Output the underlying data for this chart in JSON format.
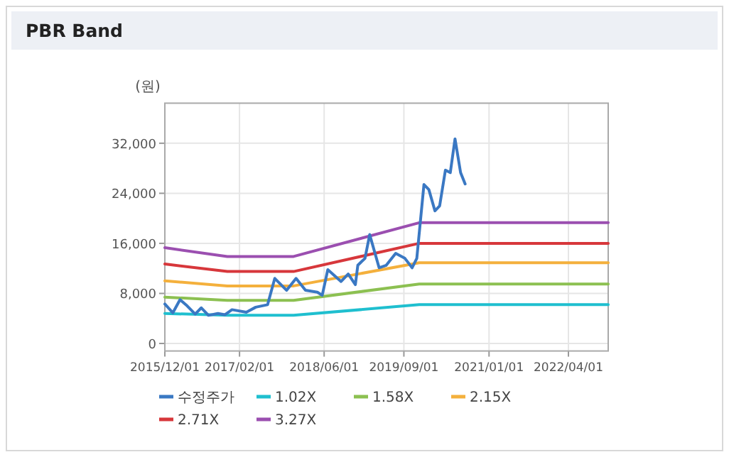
{
  "chart_data": {
    "type": "line",
    "title": "PBR Band",
    "ylabel": "(원)",
    "grid": true,
    "legend": "bottom",
    "xlim": [
      "2015-12-01",
      "2022-11-15"
    ],
    "ylim": [
      -1200,
      38400
    ],
    "xticks": [
      {
        "value": "2015-12-01",
        "label": "2015/12/01"
      },
      {
        "value": "2017-02-01",
        "label": "2017/02/01"
      },
      {
        "value": "2018-06-01",
        "label": "2018/06/01"
      },
      {
        "value": "2019-09-01",
        "label": "2019/09/01"
      },
      {
        "value": "2021-01-01",
        "label": "2021/01/01"
      },
      {
        "value": "2022-04-01",
        "label": "2022/04/01"
      }
    ],
    "yticks": [
      0,
      {
        "value": 8000,
        "label": "8,000"
      },
      {
        "value": 16000,
        "label": "16,000"
      },
      {
        "value": 24000,
        "label": "24,000"
      },
      {
        "value": 32000,
        "label": "32,000"
      }
    ],
    "series": [
      {
        "name": "수정주가",
        "color": "#3a78c3",
        "x": [
          "2015-12-01",
          "2016-01-16",
          "2016-02-26",
          "2016-04-07",
          "2016-05-23",
          "2016-06-27",
          "2016-08-07",
          "2016-09-30",
          "2016-11-10",
          "2016-12-20",
          "2017-03-12",
          "2017-05-05",
          "2017-07-12",
          "2017-08-22",
          "2017-10-29",
          "2017-12-22",
          "2018-02-14",
          "2018-04-23",
          "2018-05-21",
          "2018-06-22",
          "2018-09-06",
          "2018-10-17",
          "2018-11-27",
          "2018-12-11",
          "2019-01-21",
          "2019-02-17",
          "2019-04-12",
          "2019-05-23",
          "2019-07-16",
          "2019-09-07",
          "2019-10-18",
          "2019-11-14",
          "2019-12-25",
          "2020-01-22",
          "2020-02-26",
          "2020-03-24",
          "2020-04-26",
          "2020-05-24",
          "2020-06-20",
          "2020-07-22",
          "2020-08-17"
        ],
        "values": [
          6300,
          4900,
          7000,
          6000,
          4700,
          5700,
          4500,
          4800,
          4600,
          5400,
          5000,
          5800,
          6200,
          10400,
          8500,
          10400,
          8500,
          8200,
          7700,
          11800,
          9900,
          11100,
          9400,
          12500,
          13600,
          17400,
          12100,
          12500,
          14400,
          13600,
          12100,
          13600,
          25400,
          24600,
          21200,
          22000,
          27700,
          27300,
          32700,
          27300,
          25500
        ]
      },
      {
        "name": "1.02X",
        "color": "#1fbfcf",
        "x": [
          "2015-12-01",
          "2016-11-23",
          "2017-12-08",
          "2019-11-28",
          "2022-11-15"
        ],
        "values": [
          4800,
          4500,
          4500,
          6200,
          6200
        ]
      },
      {
        "name": "1.58X",
        "color": "#8cc051",
        "x": [
          "2015-12-01",
          "2016-11-23",
          "2017-12-08",
          "2019-11-28",
          "2022-11-15"
        ],
        "values": [
          7400,
          6900,
          6900,
          9500,
          9500
        ]
      },
      {
        "name": "2.15X",
        "color": "#f4b03c",
        "x": [
          "2015-12-01",
          "2016-11-23",
          "2017-12-08",
          "2019-11-28",
          "2022-11-15"
        ],
        "values": [
          10000,
          9200,
          9200,
          12900,
          12900
        ]
      },
      {
        "name": "2.71X",
        "color": "#d7373b",
        "x": [
          "2015-12-01",
          "2016-11-23",
          "2017-12-08",
          "2019-11-28",
          "2022-11-15"
        ],
        "values": [
          12700,
          11500,
          11500,
          16000,
          16000
        ]
      },
      {
        "name": "3.27X",
        "color": "#9b4fb0",
        "x": [
          "2015-12-01",
          "2016-11-23",
          "2017-12-08",
          "2019-11-28",
          "2022-11-15"
        ],
        "values": [
          15300,
          13900,
          13900,
          19300,
          19300
        ]
      }
    ]
  }
}
